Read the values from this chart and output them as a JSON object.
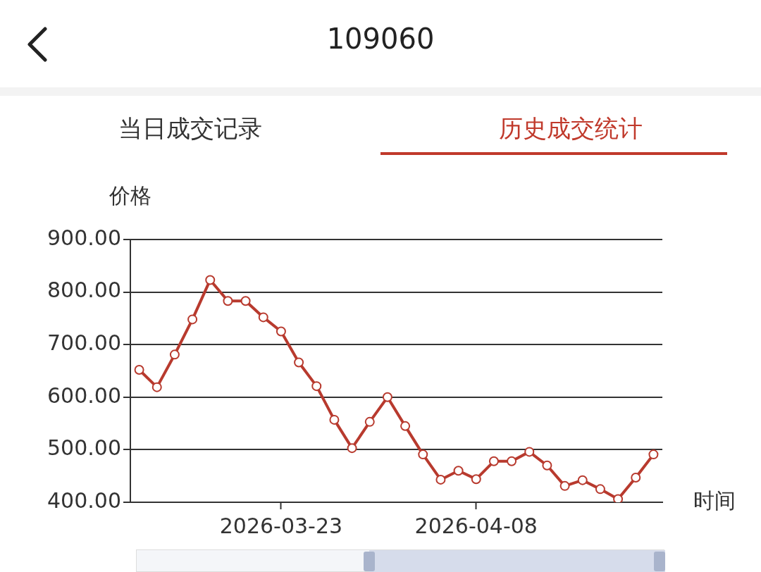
{
  "chart_data": {
    "type": "line",
    "title": "109060",
    "annotations": [
      "当日成交记录",
      "历史成交统计"
    ],
    "ylabel": "价格",
    "xlabel": "时间",
    "categories": [
      null,
      null,
      null,
      null,
      null,
      null,
      null,
      null,
      "2026-03-23",
      null,
      null,
      null,
      null,
      null,
      null,
      null,
      null,
      null,
      null,
      "2026-04-08",
      null,
      null,
      null,
      null,
      null,
      null,
      null,
      null,
      null,
      null
    ],
    "series": [
      {
        "color": "#b83a2e",
        "values": [
          652,
          619,
          681,
          748,
          823,
          783,
          783,
          752,
          725,
          666,
          621,
          557,
          503,
          553,
          600,
          545,
          491,
          443,
          460,
          444,
          478,
          478,
          496,
          470,
          431,
          442,
          425,
          406,
          447,
          491
        ]
      }
    ],
    "ylim": [
      400,
      900
    ],
    "yticks": [
      {
        "value": 400,
        "label": "400.00"
      },
      {
        "value": 500,
        "label": "500.00"
      },
      {
        "value": 600,
        "label": "600.00"
      },
      {
        "value": 700,
        "label": "700.00"
      },
      {
        "value": 800,
        "label": "800.00"
      },
      {
        "value": 900,
        "label": "900.00"
      }
    ],
    "grid": "y",
    "marker": "circle",
    "line_style": "solid",
    "legend": false
  }
}
